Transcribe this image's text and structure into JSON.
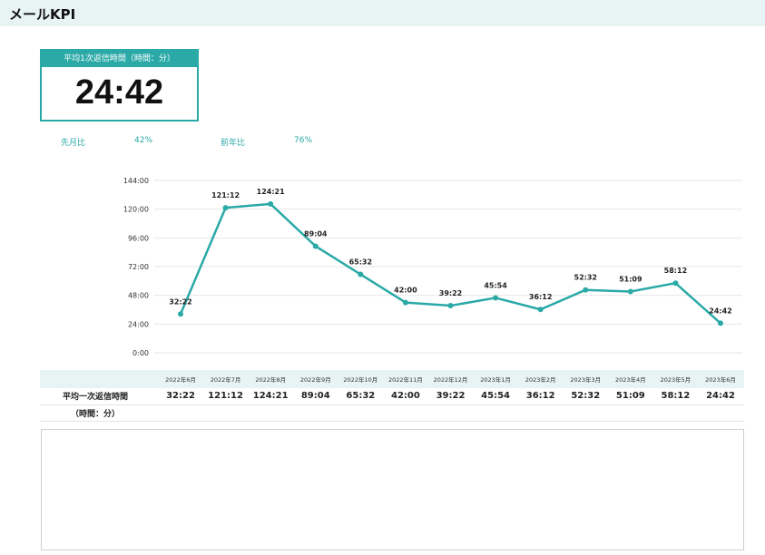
{
  "page": {
    "title": "メールKPI"
  },
  "kpi": {
    "header": "平均1次返信時間（時間：分）",
    "value": "24:42"
  },
  "comparisons": [
    {
      "label": "先月比",
      "value": "42%"
    },
    {
      "label": "前年比",
      "value": "76%"
    }
  ],
  "colors": {
    "accent": "#2aa9a7",
    "header_bg": "#e8f4f3"
  },
  "table": {
    "row_label_1": "平均一次返信時間",
    "row_label_2": "（時間：分）"
  },
  "chart_data": {
    "type": "line",
    "title": "",
    "xlabel": "",
    "ylabel": "",
    "ylim": [
      0,
      144
    ],
    "y_ticks": [
      "0:00",
      "24:00",
      "48:00",
      "72:00",
      "96:00",
      "120:00",
      "144:00"
    ],
    "y_tick_values": [
      0,
      24,
      48,
      72,
      96,
      120,
      144
    ],
    "grid": true,
    "categories": [
      "2022年6月",
      "2022年7月",
      "2022年8月",
      "2022年9月",
      "2022年10月",
      "2022年11月",
      "2022年12月",
      "2023年1月",
      "2023年2月",
      "2023年3月",
      "2023年4月",
      "2023年5月",
      "2023年6月"
    ],
    "series": [
      {
        "labels": [
          "32:22",
          "121:12",
          "124:21",
          "89:04",
          "65:32",
          "42:00",
          "39:22",
          "45:54",
          "36:12",
          "52:32",
          "51:09",
          "58:12",
          "24:42"
        ],
        "values": [
          32.37,
          121.2,
          124.35,
          89.07,
          65.53,
          42.0,
          39.37,
          45.9,
          36.2,
          52.53,
          51.15,
          58.2,
          24.7
        ]
      }
    ]
  }
}
